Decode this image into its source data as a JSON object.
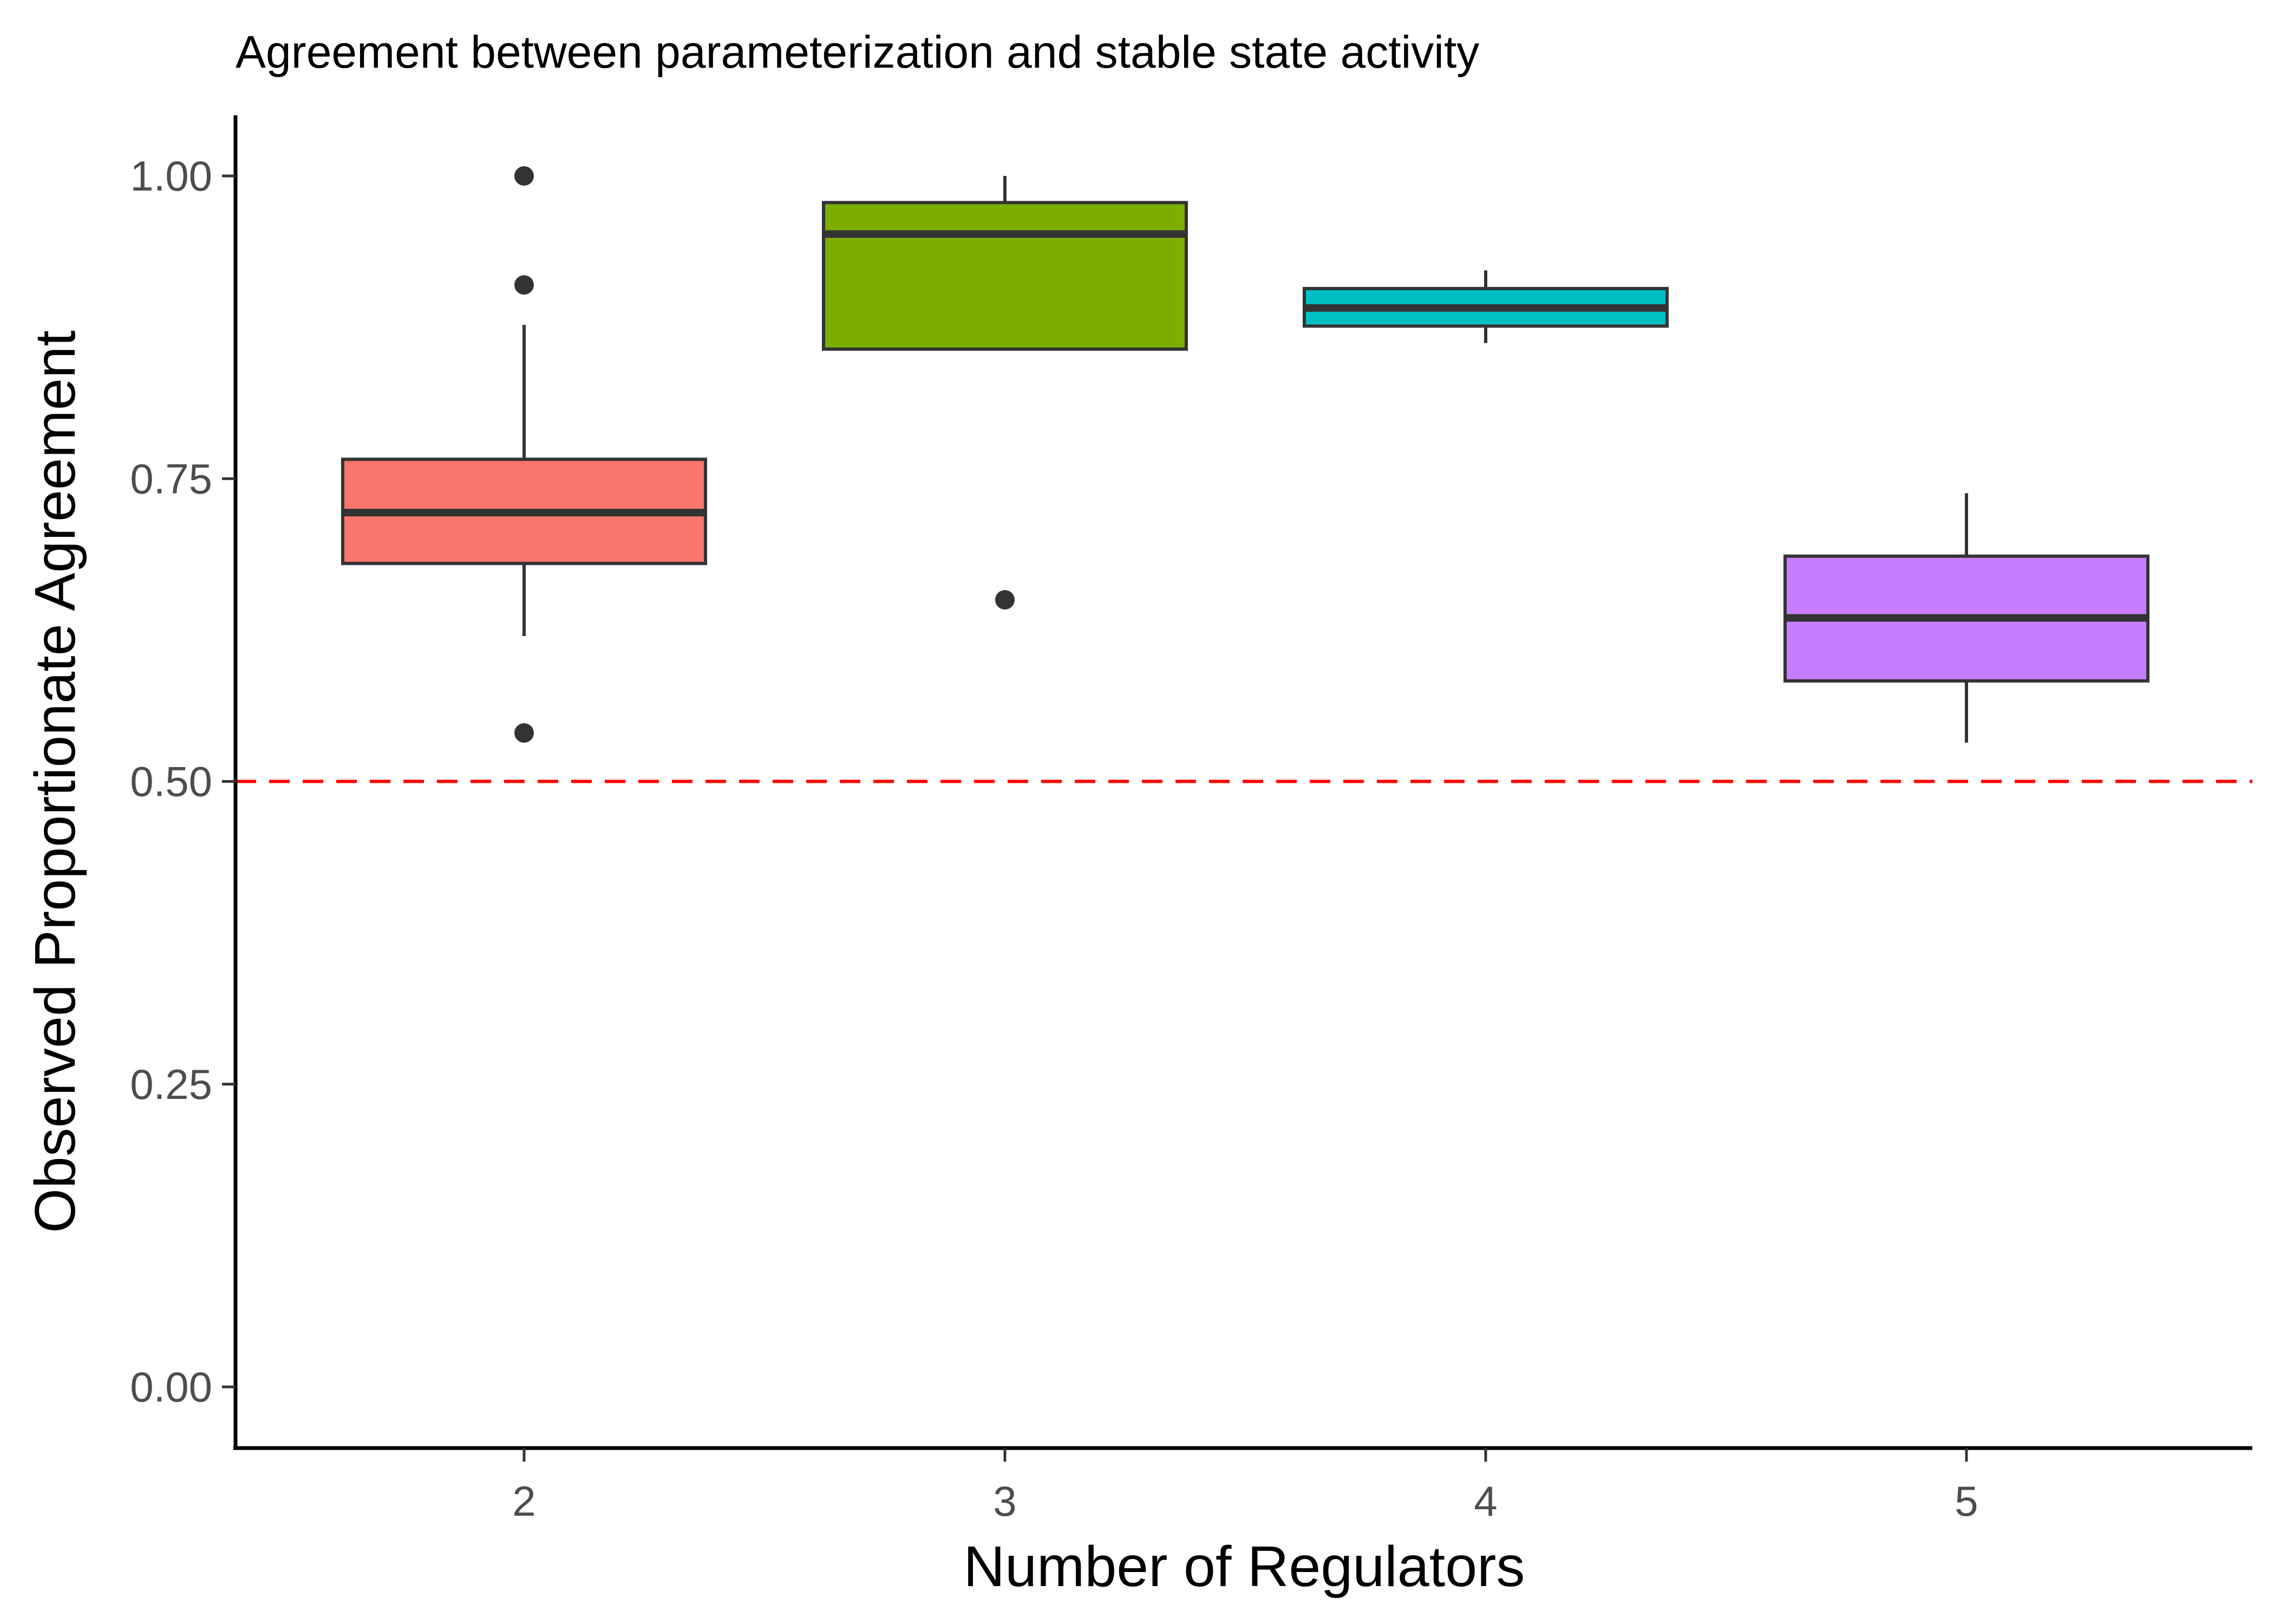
{
  "chart_data": {
    "type": "boxplot",
    "title": "Agreement between parameterization and stable state activity",
    "xlabel": "Number of Regulators",
    "ylabel": "Observed Proportionate Agreement",
    "ylim": [
      -0.05,
      1.05
    ],
    "yticks": [
      "0.00",
      "0.25",
      "0.50",
      "0.75",
      "1.00"
    ],
    "ytick_values": [
      0,
      0.25,
      0.5,
      0.75,
      1.0
    ],
    "categories": [
      "2",
      "3",
      "4",
      "5"
    ],
    "boxes": [
      {
        "category": "2",
        "lower_whisker": 0.62,
        "q1": 0.68,
        "median": 0.722,
        "q3": 0.766,
        "upper_whisker": 0.877,
        "outliers": [
          0.54,
          0.91,
          1.0
        ],
        "fill": "#F8766D"
      },
      {
        "category": "3",
        "lower_whisker": 0.857,
        "q1": 0.857,
        "median": 0.952,
        "q3": 0.978,
        "upper_whisker": 1.0,
        "outliers": [
          0.65
        ],
        "fill": "#7CAE00"
      },
      {
        "category": "4",
        "lower_whisker": 0.862,
        "q1": 0.876,
        "median": 0.891,
        "q3": 0.907,
        "upper_whisker": 0.922,
        "outliers": [],
        "fill": "#00BFC4"
      },
      {
        "category": "5",
        "lower_whisker": 0.532,
        "q1": 0.583,
        "median": 0.635,
        "q3": 0.686,
        "upper_whisker": 0.738,
        "outliers": [],
        "fill": "#C77CFF"
      }
    ],
    "reference_line": {
      "y": 0.5,
      "color": "#FF0000",
      "style": "dashed"
    },
    "grid": false,
    "legend": "none"
  }
}
